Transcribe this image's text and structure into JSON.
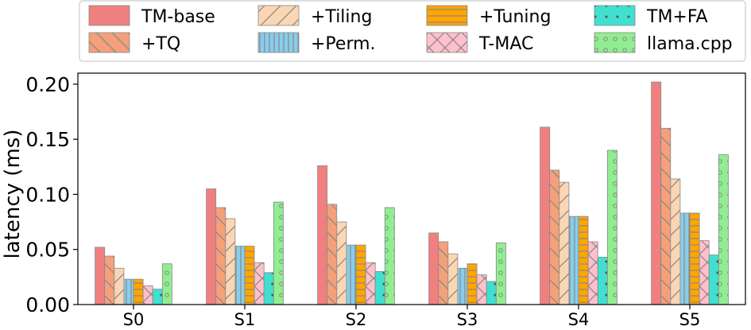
{
  "chart_data": {
    "type": "bar",
    "title": "",
    "xlabel": "",
    "ylabel": "latency (ms)",
    "ylim": [
      0,
      0.21
    ],
    "yticks": [
      "0.00",
      "0.05",
      "0.10",
      "0.15",
      "0.20"
    ],
    "categories": [
      "S0",
      "S1",
      "S2",
      "S3",
      "S4",
      "S5"
    ],
    "grid": false,
    "legend_position": "top",
    "series": [
      {
        "name": "TM-base",
        "color": "#F08080",
        "hatch": "none",
        "values": [
          0.052,
          0.105,
          0.126,
          0.065,
          0.161,
          0.202
        ]
      },
      {
        "name": "+TQ",
        "color": "#F4A07A",
        "hatch": "backslash",
        "values": [
          0.044,
          0.088,
          0.091,
          0.057,
          0.122,
          0.16
        ]
      },
      {
        "name": "+Tiling",
        "color": "#FBD6B4",
        "hatch": "slash",
        "values": [
          0.033,
          0.078,
          0.075,
          0.046,
          0.111,
          0.114
        ]
      },
      {
        "name": "+Perm.",
        "color": "#87CEEB",
        "hatch": "vertical",
        "values": [
          0.023,
          0.053,
          0.054,
          0.033,
          0.08,
          0.083
        ]
      },
      {
        "name": "+Tuning",
        "color": "#FFA500",
        "hatch": "horizontal",
        "values": [
          0.023,
          0.053,
          0.054,
          0.037,
          0.08,
          0.083
        ]
      },
      {
        "name": "T-MAC",
        "color": "#FFC0CB",
        "hatch": "cross",
        "values": [
          0.017,
          0.038,
          0.038,
          0.027,
          0.057,
          0.058
        ]
      },
      {
        "name": "TM+FA",
        "color": "#40E0D0",
        "hatch": "dots",
        "values": [
          0.014,
          0.029,
          0.03,
          0.021,
          0.043,
          0.045
        ]
      },
      {
        "name": "llama.cpp",
        "color": "#90EE90",
        "hatch": "circles",
        "values": [
          0.037,
          0.093,
          0.088,
          0.056,
          0.14,
          0.136
        ]
      }
    ]
  }
}
